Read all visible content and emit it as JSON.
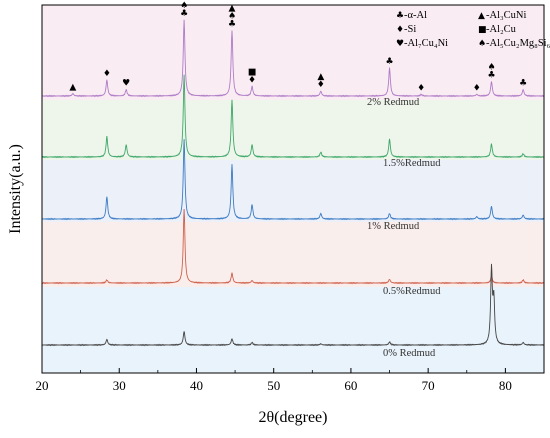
{
  "chart_data": {
    "type": "line",
    "xlabel": "2θ(degree)",
    "ylabel": "Intensity(a.u.)",
    "xlim": [
      20,
      85
    ],
    "xticks": [
      20,
      30,
      40,
      50,
      60,
      70,
      80
    ],
    "grid": false,
    "bands": [
      {
        "series": "2%  Redmud",
        "color": "#f9ecf2"
      },
      {
        "series": "1.5%Redmud",
        "color": "#eef5ea"
      },
      {
        "series": "1%  Redmud",
        "color": "#ebf0f9"
      },
      {
        "series": "0.5%Redmud",
        "color": "#f9eeec"
      },
      {
        "series": "0%  Redmud",
        "color": "#e9f3fb"
      }
    ],
    "series": [
      {
        "name": "2%  Redmud",
        "color": "#b07cc8",
        "peaks": [
          {
            "x": 24.0,
            "h": 0.03
          },
          {
            "x": 28.4,
            "h": 0.2
          },
          {
            "x": 30.9,
            "h": 0.08
          },
          {
            "x": 38.4,
            "h": 0.95
          },
          {
            "x": 44.6,
            "h": 0.82
          },
          {
            "x": 47.2,
            "h": 0.12
          },
          {
            "x": 56.1,
            "h": 0.06
          },
          {
            "x": 65.0,
            "h": 0.35
          },
          {
            "x": 69.1,
            "h": 0.02
          },
          {
            "x": 76.3,
            "h": 0.02
          },
          {
            "x": 78.2,
            "h": 0.18
          },
          {
            "x": 82.3,
            "h": 0.08
          }
        ]
      },
      {
        "name": "1.5%Redmud",
        "color": "#3ea86a",
        "peaks": [
          {
            "x": 28.4,
            "h": 0.25
          },
          {
            "x": 30.9,
            "h": 0.15
          },
          {
            "x": 38.4,
            "h": 1.0
          },
          {
            "x": 44.6,
            "h": 0.7
          },
          {
            "x": 47.2,
            "h": 0.15
          },
          {
            "x": 56.1,
            "h": 0.06
          },
          {
            "x": 65.0,
            "h": 0.22
          },
          {
            "x": 78.2,
            "h": 0.16
          },
          {
            "x": 82.3,
            "h": 0.04
          }
        ]
      },
      {
        "name": "1%  Redmud",
        "color": "#3d7cc5",
        "peaks": [
          {
            "x": 28.4,
            "h": 0.28
          },
          {
            "x": 38.4,
            "h": 1.0
          },
          {
            "x": 44.6,
            "h": 0.68
          },
          {
            "x": 47.2,
            "h": 0.18
          },
          {
            "x": 56.1,
            "h": 0.07
          },
          {
            "x": 65.0,
            "h": 0.07
          },
          {
            "x": 76.3,
            "h": 0.03
          },
          {
            "x": 78.2,
            "h": 0.16
          },
          {
            "x": 82.3,
            "h": 0.05
          }
        ]
      },
      {
        "name": "0.5%Redmud",
        "color": "#d0614d",
        "peaks": [
          {
            "x": 28.4,
            "h": 0.05
          },
          {
            "x": 38.4,
            "h": 1.2
          },
          {
            "x": 44.6,
            "h": 0.16
          },
          {
            "x": 47.2,
            "h": 0.04
          },
          {
            "x": 65.0,
            "h": 0.06
          },
          {
            "x": 78.2,
            "h": 0.11
          },
          {
            "x": 82.3,
            "h": 0.05
          }
        ]
      },
      {
        "name": "0%  Redmud",
        "color": "#444444",
        "peaks": [
          {
            "x": 28.4,
            "h": 0.09
          },
          {
            "x": 38.4,
            "h": 0.22
          },
          {
            "x": 44.6,
            "h": 0.1
          },
          {
            "x": 47.2,
            "h": 0.04
          },
          {
            "x": 56.1,
            "h": 0.02
          },
          {
            "x": 65.0,
            "h": 0.05
          },
          {
            "x": 78.2,
            "h": 1.2
          },
          {
            "x": 78.5,
            "h": 0.7
          },
          {
            "x": 82.3,
            "h": 0.04
          }
        ]
      }
    ],
    "markers": [
      {
        "x": 24.0,
        "syms": [
          "▲"
        ]
      },
      {
        "x": 28.4,
        "syms": [
          "♦"
        ]
      },
      {
        "x": 30.9,
        "syms": [
          "♥"
        ]
      },
      {
        "x": 38.4,
        "syms": [
          "♣",
          "♠"
        ]
      },
      {
        "x": 44.6,
        "syms": [
          "♣",
          "♠",
          "▲"
        ]
      },
      {
        "x": 47.2,
        "syms": [
          "♦",
          "■"
        ]
      },
      {
        "x": 56.1,
        "syms": [
          "♦",
          "▲"
        ]
      },
      {
        "x": 65.0,
        "syms": [
          "♣"
        ]
      },
      {
        "x": 69.1,
        "syms": [
          "♦"
        ]
      },
      {
        "x": 76.3,
        "syms": [
          "♦"
        ]
      },
      {
        "x": 78.2,
        "syms": [
          "♣",
          "♠"
        ]
      },
      {
        "x": 82.3,
        "syms": [
          "♣"
        ]
      }
    ],
    "legend": {
      "placement": "top-right",
      "entries": [
        {
          "sym": "♣",
          "text": "-α-Al"
        },
        {
          "sym": "▲",
          "text": "-Al₃CuNi"
        },
        {
          "sym": "♦",
          "text": "-Si"
        },
        {
          "sym": "■",
          "text": "-Al₂Cu"
        },
        {
          "sym": "♥",
          "text": "-Al₇Cu₄Ni"
        },
        {
          "sym": "♠",
          "text": "-Al₅Cu₂Mg₈Si₆"
        }
      ]
    }
  }
}
